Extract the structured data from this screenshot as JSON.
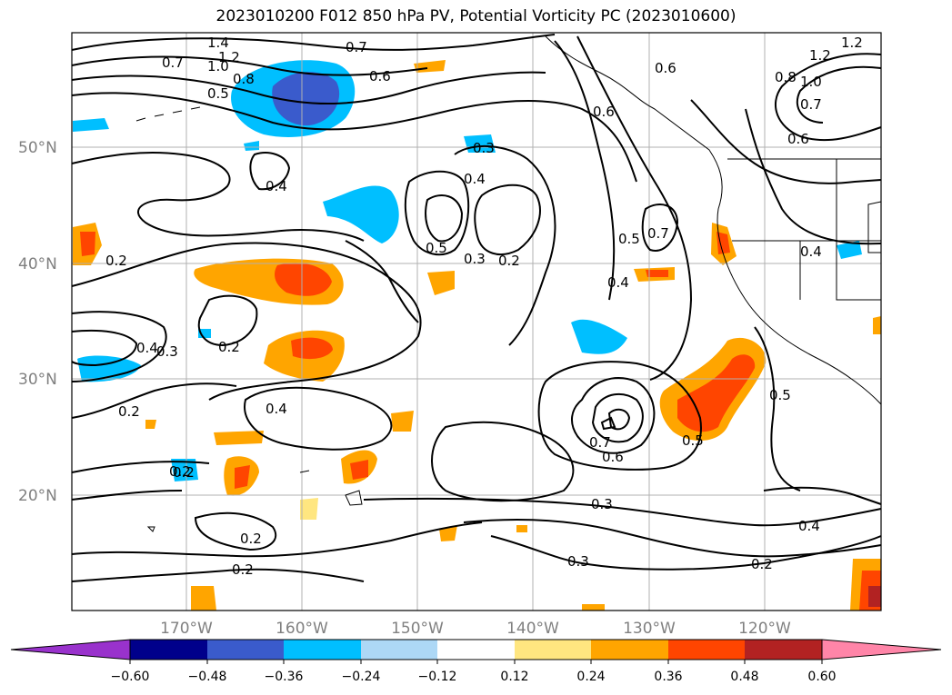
{
  "title": "2023010200 F012 850 hPa PV, Potential Vorticity PC (2023010600)",
  "map": {
    "lat_labels": [
      "50°N",
      "40°N",
      "30°N",
      "20°N"
    ],
    "lon_labels": [
      "170°W",
      "160°W",
      "150°W",
      "140°W",
      "130°W",
      "120°W"
    ],
    "contour_labels": [
      "1.4",
      "1.2",
      "1.0",
      "0.7",
      "0.8",
      "0.5",
      "0.7",
      "0.6",
      "0.6",
      "0.6",
      "1.2",
      "1.2",
      "1.0",
      "0.8",
      "0.7",
      "0.6",
      "0.3",
      "0.4",
      "0.4",
      "0.5",
      "0.3",
      "0.2",
      "0.5",
      "0.7",
      "0.4",
      "0.4",
      "0.2",
      "0.4",
      "0.3",
      "0.2",
      "0.2",
      "0.4",
      "0.2",
      "0.2",
      "0.2",
      "0.7",
      "0.6",
      "0.5",
      "0.5",
      "0.3",
      "0.3",
      "0.4",
      "0.2",
      "0.2"
    ]
  },
  "colorbar": {
    "ticks": [
      "−0.60",
      "−0.48",
      "−0.36",
      "−0.24",
      "−0.12",
      "0.12",
      "0.24",
      "0.36",
      "0.48",
      "0.60"
    ],
    "colors": [
      "#9932cc",
      "#00008b",
      "#3a5bcc",
      "#00bfff",
      "#add8f6",
      "#ffffff",
      "#ffe680",
      "#ffa500",
      "#ff4500",
      "#b22222",
      "#ff85a8"
    ]
  }
}
